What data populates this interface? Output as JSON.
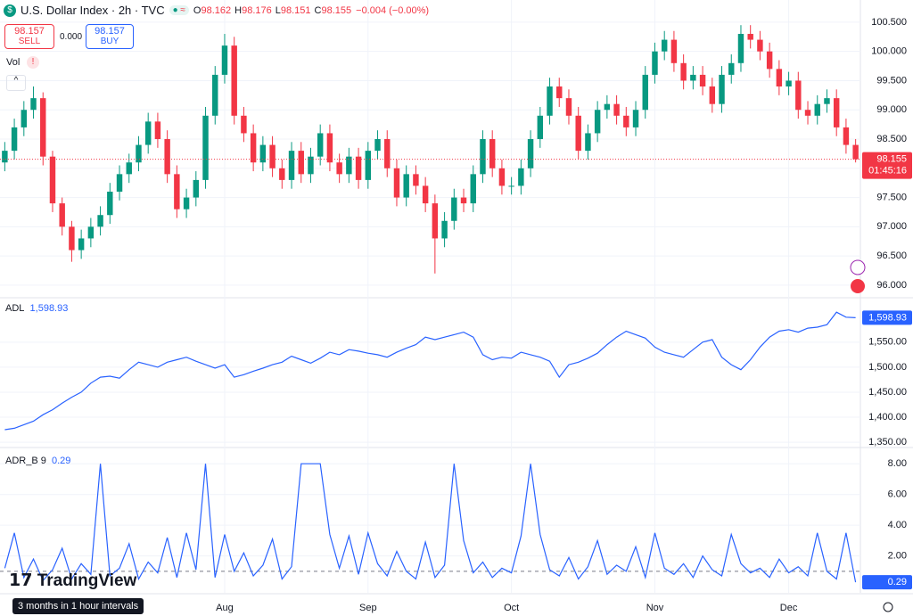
{
  "header": {
    "title": "U.S. Dollar Index · 2h · TVC",
    "ohlc": [
      {
        "label": "O",
        "value": 98.162
      },
      {
        "label": "H",
        "value": 98.176
      },
      {
        "label": "L",
        "value": 98.151
      },
      {
        "label": "C",
        "value": 98.155
      }
    ],
    "change": "−0.004 (−0.00%)",
    "sell_price": 98.157,
    "sell_label": "SELL",
    "spread": "0.000",
    "buy_price": 98.157,
    "buy_label": "BUY",
    "volume_label": "Vol",
    "countdown": "01:45:16",
    "footer": "3 months in 1 hour intervals",
    "logo": "TradingView"
  },
  "chart_data": [
    {
      "type": "candlestick",
      "up_color": "#089981",
      "down_color": "#f23645",
      "last_line_color": "#f23645",
      "categories": [
        null,
        null,
        null,
        null,
        null,
        null,
        null,
        null,
        null,
        null,
        null,
        null,
        null,
        null,
        null,
        null,
        null,
        null,
        null,
        null,
        null,
        null,
        null,
        "Aug",
        null,
        null,
        null,
        null,
        null,
        null,
        null,
        null,
        null,
        null,
        null,
        null,
        null,
        null,
        "Sep",
        null,
        null,
        null,
        null,
        null,
        null,
        null,
        null,
        null,
        null,
        null,
        null,
        null,
        null,
        "Oct",
        null,
        null,
        null,
        null,
        null,
        null,
        null,
        null,
        null,
        null,
        null,
        null,
        null,
        null,
        "Nov",
        null,
        null,
        null,
        null,
        null,
        null,
        null,
        null,
        null,
        null,
        null,
        null,
        null,
        "Dec",
        null,
        null,
        null,
        null,
        null,
        null,
        null
      ],
      "open": [
        98.1,
        98.3,
        98.7,
        99.0,
        99.2,
        98.2,
        97.4,
        97.0,
        96.6,
        96.8,
        97.0,
        97.2,
        97.6,
        97.9,
        98.1,
        98.4,
        98.8,
        98.5,
        97.9,
        97.3,
        97.5,
        97.8,
        98.9,
        99.6,
        100.1,
        98.9,
        98.6,
        98.1,
        98.4,
        98.0,
        97.8,
        98.3,
        97.9,
        98.2,
        98.6,
        98.1,
        97.9,
        98.2,
        97.8,
        98.3,
        98.5,
        98.0,
        97.5,
        97.9,
        97.7,
        97.4,
        96.8,
        97.1,
        97.5,
        97.4,
        97.9,
        98.5,
        98.0,
        97.7,
        97.7,
        98.0,
        98.5,
        98.9,
        99.4,
        99.2,
        98.9,
        98.3,
        98.6,
        99.0,
        99.1,
        98.9,
        98.7,
        99.0,
        99.6,
        100.0,
        100.2,
        99.8,
        99.5,
        99.6,
        99.4,
        99.1,
        99.6,
        99.8,
        100.3,
        100.2,
        100.0,
        99.7,
        99.4,
        99.5,
        99.0,
        98.9,
        99.1,
        99.2,
        98.7,
        98.4
      ],
      "high": [
        98.45,
        98.85,
        99.15,
        99.4,
        99.3,
        98.3,
        97.5,
        97.1,
        96.95,
        97.15,
        97.35,
        97.75,
        98.05,
        98.25,
        98.55,
        98.95,
        98.95,
        98.65,
        98.05,
        97.65,
        97.95,
        99.05,
        99.75,
        100.3,
        100.25,
        99.05,
        98.75,
        98.55,
        98.55,
        98.15,
        98.45,
        98.45,
        98.35,
        98.75,
        98.75,
        98.25,
        98.35,
        98.35,
        98.45,
        98.65,
        98.65,
        98.15,
        98.05,
        98.05,
        97.85,
        97.55,
        97.25,
        97.65,
        97.65,
        98.05,
        98.65,
        98.65,
        98.15,
        97.85,
        98.15,
        98.65,
        99.05,
        99.55,
        99.55,
        99.35,
        99.05,
        98.75,
        99.15,
        99.25,
        99.25,
        99.05,
        99.15,
        99.75,
        100.15,
        100.35,
        100.35,
        99.95,
        99.75,
        99.75,
        99.55,
        99.75,
        99.95,
        100.45,
        100.45,
        100.35,
        100.15,
        99.85,
        99.65,
        99.65,
        99.15,
        99.25,
        99.35,
        99.35,
        98.85,
        98.5
      ],
      "low": [
        97.95,
        98.15,
        98.55,
        98.85,
        98.05,
        97.25,
        96.85,
        96.4,
        96.45,
        96.65,
        96.85,
        97.05,
        97.45,
        97.75,
        97.95,
        98.25,
        98.35,
        97.75,
        97.15,
        97.15,
        97.35,
        97.65,
        98.75,
        99.45,
        98.75,
        98.45,
        97.95,
        97.95,
        97.85,
        97.65,
        97.65,
        97.75,
        97.75,
        98.05,
        97.95,
        97.75,
        97.75,
        97.65,
        97.65,
        98.15,
        97.85,
        97.35,
        97.35,
        97.55,
        97.25,
        96.2,
        96.65,
        96.95,
        97.25,
        97.25,
        97.75,
        97.85,
        97.55,
        97.55,
        97.55,
        97.85,
        98.35,
        98.75,
        99.05,
        98.75,
        98.15,
        98.15,
        98.45,
        98.85,
        98.75,
        98.55,
        98.55,
        98.85,
        99.45,
        99.85,
        99.65,
        99.35,
        99.35,
        99.25,
        98.95,
        98.95,
        99.45,
        99.65,
        100.05,
        99.85,
        99.55,
        99.25,
        99.25,
        98.85,
        98.75,
        98.75,
        98.95,
        98.55,
        98.25,
        98.1
      ],
      "close": [
        98.3,
        98.7,
        99.0,
        99.2,
        98.2,
        97.4,
        97.0,
        96.6,
        96.8,
        97.0,
        97.2,
        97.6,
        97.9,
        98.1,
        98.4,
        98.8,
        98.5,
        97.9,
        97.3,
        97.5,
        97.8,
        98.9,
        99.6,
        100.1,
        98.9,
        98.6,
        98.1,
        98.4,
        98.0,
        97.8,
        98.3,
        97.9,
        98.2,
        98.6,
        98.1,
        97.9,
        98.2,
        97.8,
        98.3,
        98.5,
        98.0,
        97.5,
        97.9,
        97.7,
        97.4,
        96.8,
        97.1,
        97.5,
        97.4,
        97.9,
        98.5,
        98.0,
        97.7,
        97.7,
        98.0,
        98.5,
        98.9,
        99.4,
        99.2,
        98.9,
        98.3,
        98.6,
        99.0,
        99.1,
        98.9,
        98.7,
        99.0,
        99.6,
        100.0,
        100.2,
        99.8,
        99.5,
        99.6,
        99.4,
        99.1,
        99.6,
        99.8,
        100.3,
        100.2,
        100.0,
        99.7,
        99.4,
        99.5,
        99.0,
        98.9,
        99.1,
        99.2,
        98.7,
        98.4,
        98.155
      ],
      "ylim": [
        95.8,
        100.88
      ],
      "yticks": [
        {
          "value": 96,
          "label": "96.000"
        },
        {
          "value": 96.5,
          "label": "96.500"
        },
        {
          "value": 97,
          "label": "97.000"
        },
        {
          "value": 97.5,
          "label": "97.500"
        },
        {
          "value": 98,
          "label": "98.000"
        },
        {
          "value": 98.5,
          "label": "98.500"
        },
        {
          "value": 99,
          "label": "99.000"
        },
        {
          "value": 99.5,
          "label": "99.500"
        },
        {
          "value": 100,
          "label": "100.000"
        },
        {
          "value": 100.5,
          "label": "100.500"
        }
      ],
      "grid": true
    },
    {
      "type": "line",
      "name": "ADL",
      "color": "#2962ff",
      "last_label": "1,598.93",
      "values": [
        1375,
        1378,
        1385,
        1392,
        1405,
        1415,
        1428,
        1440,
        1450,
        1468,
        1480,
        1482,
        1478,
        1495,
        1510,
        1505,
        1500,
        1510,
        1515,
        1520,
        1512,
        1505,
        1498,
        1505,
        1480,
        1485,
        1492,
        1498,
        1505,
        1510,
        1522,
        1515,
        1508,
        1518,
        1530,
        1525,
        1535,
        1532,
        1528,
        1525,
        1520,
        1530,
        1538,
        1545,
        1560,
        1555,
        1560,
        1565,
        1570,
        1560,
        1525,
        1515,
        1520,
        1518,
        1530,
        1525,
        1520,
        1512,
        1480,
        1505,
        1510,
        1518,
        1528,
        1545,
        1560,
        1572,
        1565,
        1558,
        1540,
        1530,
        1525,
        1520,
        1535,
        1550,
        1555,
        1520,
        1505,
        1495,
        1515,
        1540,
        1560,
        1572,
        1575,
        1570,
        1578,
        1580,
        1585,
        1610,
        1600,
        1598.93
      ],
      "ylim": [
        1343,
        1637
      ],
      "yticks": [
        {
          "value": 1350,
          "label": "1,350.00"
        },
        {
          "value": 1400,
          "label": "1,400.00"
        },
        {
          "value": 1450,
          "label": "1,450.00"
        },
        {
          "value": 1500,
          "label": "1,500.00"
        },
        {
          "value": 1550,
          "label": "1,550.00"
        }
      ],
      "grid": true
    },
    {
      "type": "line",
      "name": "ADR_B 9",
      "color": "#2962ff",
      "reference": 1,
      "values": [
        1.2,
        3.5,
        0.6,
        1.8,
        0.4,
        1.1,
        2.5,
        0.5,
        1.5,
        0.8,
        8,
        0.7,
        1.2,
        2.8,
        0.5,
        1.6,
        0.9,
        3.2,
        0.6,
        3.5,
        1.1,
        8,
        0.6,
        3.4,
        1.0,
        2.2,
        0.7,
        1.4,
        3.1,
        0.5,
        1.3,
        8,
        8,
        8,
        3.4,
        1.2,
        3.3,
        0.8,
        3.5,
        1.5,
        0.7,
        2.3,
        1.0,
        0.5,
        2.9,
        0.6,
        1.4,
        8,
        3.0,
        0.9,
        1.6,
        0.6,
        1.2,
        0.9,
        3.3,
        8,
        3.4,
        1.1,
        0.7,
        1.9,
        0.5,
        1.3,
        3.0,
        0.8,
        1.4,
        1.0,
        2.6,
        0.6,
        3.5,
        1.2,
        0.8,
        1.5,
        0.6,
        2.0,
        1.1,
        0.7,
        3.4,
        1.5,
        0.9,
        1.2,
        0.6,
        1.8,
        0.9,
        1.3,
        0.7,
        3.5,
        1.0,
        0.5,
        3.5,
        0.29
      ],
      "ylim": [
        -0.4,
        9
      ],
      "yticks": [
        {
          "value": 2,
          "label": "2.00"
        },
        {
          "value": 4,
          "label": "4.00"
        },
        {
          "value": 6,
          "label": "6.00"
        },
        {
          "value": 8,
          "label": "8.00"
        }
      ],
      "grid": true
    }
  ]
}
